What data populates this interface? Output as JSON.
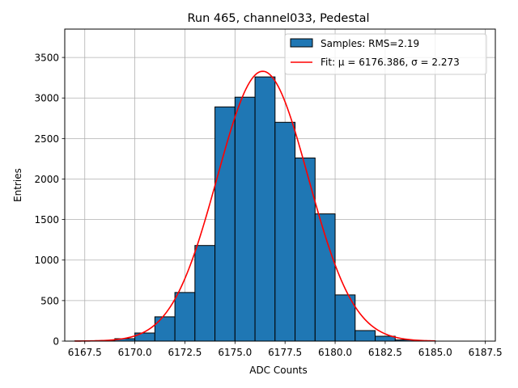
{
  "chart_data": {
    "type": "bar",
    "title": "Run 465, channel033, Pedestal",
    "xlabel": "ADC Counts",
    "ylabel": "Entries",
    "xlim": [
      6166.5,
      6188.0
    ],
    "ylim": [
      0,
      3850
    ],
    "grid": true,
    "legend_position": "top-right",
    "xticks": [
      6167.5,
      6170.0,
      6172.5,
      6175.0,
      6177.5,
      6180.0,
      6182.5,
      6185.0,
      6187.5
    ],
    "xtick_labels": [
      "6167.5",
      "6170.0",
      "6172.5",
      "6175.0",
      "6177.5",
      "6180.0",
      "6182.5",
      "6185.0",
      "6187.5"
    ],
    "yticks": [
      0,
      500,
      1000,
      1500,
      2000,
      2500,
      3000,
      3500
    ],
    "ytick_labels": [
      "0",
      "500",
      "1000",
      "1500",
      "2000",
      "2500",
      "3000",
      "3500"
    ],
    "histogram": {
      "name": "Samples: RMS=2.19",
      "color": "#1f77b4",
      "edge_color": "#000000",
      "bin_edges": [
        6167,
        6168,
        6169,
        6170,
        6171,
        6172,
        6173,
        6174,
        6175,
        6176,
        6177,
        6178,
        6179,
        6180,
        6181,
        6182,
        6183,
        6184,
        6185
      ],
      "counts": [
        3,
        6,
        30,
        100,
        300,
        600,
        1180,
        2890,
        3010,
        3260,
        2700,
        2260,
        1570,
        570,
        130,
        60,
        15,
        3
      ]
    },
    "fit": {
      "name": "Fit: μ = 6176.386, σ = 2.273",
      "color": "#ff0000",
      "mu": 6176.386,
      "sigma": 2.273,
      "amplitude": 3330,
      "x_range": [
        6167.0,
        6185.0
      ]
    }
  }
}
